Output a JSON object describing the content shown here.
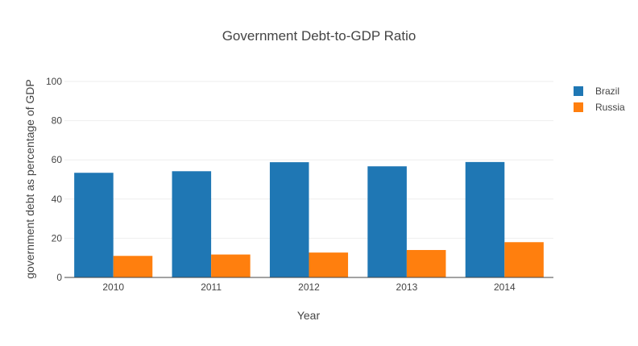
{
  "chart_data": {
    "type": "bar",
    "title": "Government Debt-to-GDP Ratio",
    "xlabel": "Year",
    "ylabel": "government debt as percentage of GDP",
    "categories": [
      "2010",
      "2011",
      "2012",
      "2013",
      "2014"
    ],
    "series": [
      {
        "name": "Brazil",
        "color": "#1f77b4",
        "values": [
          53.4,
          54.2,
          58.8,
          56.7,
          58.9
        ]
      },
      {
        "name": "Russia",
        "color": "#ff7f0e",
        "values": [
          11.0,
          11.7,
          12.7,
          14.0,
          18.0
        ]
      }
    ],
    "ylim": [
      0,
      100
    ],
    "yticks": [
      0,
      20,
      40,
      60,
      80,
      100
    ],
    "grid": true,
    "legend_position": "top-right"
  }
}
